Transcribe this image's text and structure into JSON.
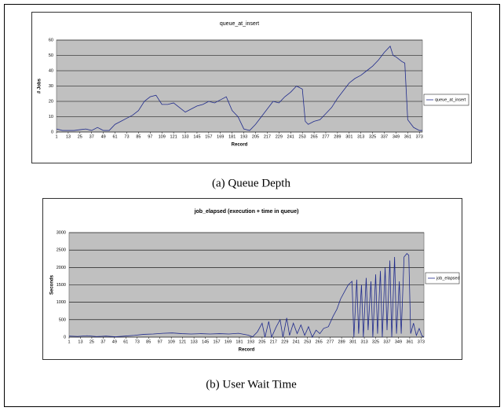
{
  "chart_data": [
    {
      "type": "line",
      "title": "queue_at_insert",
      "x_label": "Record",
      "y_label": "# Jobs",
      "caption": "(a) Queue Depth",
      "xlim": [
        1,
        376
      ],
      "xticks": [
        1,
        13,
        25,
        37,
        49,
        61,
        73,
        85,
        97,
        109,
        121,
        133,
        145,
        157,
        169,
        181,
        193,
        205,
        217,
        229,
        241,
        253,
        265,
        277,
        289,
        301,
        313,
        325,
        337,
        349,
        361,
        373
      ],
      "ylim": [
        0,
        60
      ],
      "yticks": [
        0,
        10,
        20,
        30,
        40,
        50,
        60
      ],
      "grid": true,
      "legend": "right",
      "x": [
        1,
        7,
        13,
        19,
        25,
        31,
        37,
        43,
        49,
        55,
        61,
        67,
        73,
        79,
        85,
        91,
        97,
        103,
        109,
        115,
        121,
        127,
        133,
        139,
        145,
        151,
        157,
        163,
        169,
        175,
        181,
        187,
        193,
        199,
        205,
        211,
        217,
        223,
        229,
        235,
        241,
        247,
        253,
        256,
        259,
        265,
        271,
        277,
        283,
        289,
        295,
        301,
        307,
        313,
        319,
        325,
        331,
        337,
        343,
        346,
        349,
        355,
        358,
        361,
        367,
        373,
        376
      ],
      "series": [
        {
          "name": "queue_at_insert",
          "color": "#1f2a8c",
          "values": [
            2,
            1,
            1,
            1,
            1.5,
            2,
            1,
            3,
            1,
            1,
            5,
            7,
            9,
            11,
            14,
            20,
            23,
            24,
            18,
            18,
            19,
            16,
            13,
            15,
            17,
            18,
            20,
            19,
            21,
            23,
            14,
            10,
            2,
            1,
            5,
            10,
            15,
            20,
            19,
            23,
            26,
            30,
            28,
            7,
            5,
            7,
            8,
            12,
            16,
            22,
            27,
            32,
            35,
            37,
            40,
            43,
            47,
            52,
            56,
            50,
            49,
            46,
            45,
            8,
            3,
            1,
            1
          ]
        }
      ]
    },
    {
      "type": "line",
      "title": "job_elapsed (execution + time in queue)",
      "x_label": "Record",
      "y_label": "Seconds",
      "caption": "(b) User Wait Time",
      "xlim": [
        1,
        376
      ],
      "xticks": [
        1,
        13,
        25,
        37,
        49,
        61,
        73,
        85,
        97,
        109,
        121,
        133,
        145,
        157,
        169,
        181,
        193,
        205,
        217,
        229,
        241,
        253,
        265,
        277,
        289,
        301,
        313,
        325,
        337,
        349,
        361,
        373
      ],
      "ylim": [
        0,
        3000
      ],
      "yticks": [
        0,
        500,
        1000,
        1500,
        2000,
        2500,
        3000
      ],
      "grid": true,
      "legend": "right",
      "x": [
        1,
        10,
        20,
        30,
        40,
        50,
        60,
        70,
        80,
        90,
        100,
        110,
        120,
        130,
        140,
        150,
        160,
        170,
        180,
        190,
        195,
        200,
        205,
        208,
        212,
        215,
        220,
        224,
        227,
        231,
        234,
        238,
        242,
        246,
        250,
        254,
        258,
        262,
        266,
        270,
        275,
        280,
        284,
        288,
        292,
        296,
        300,
        302,
        305,
        307,
        310,
        312,
        315,
        317,
        320,
        322,
        325,
        327,
        330,
        332,
        335,
        337,
        340,
        342,
        345,
        347,
        350,
        352,
        355,
        358,
        360,
        362,
        365,
        368,
        371,
        374,
        376
      ],
      "series": [
        {
          "name": "job_elapsed",
          "color": "#1f2a8c",
          "values": [
            30,
            20,
            40,
            15,
            30,
            10,
            30,
            50,
            80,
            90,
            110,
            120,
            100,
            90,
            100,
            90,
            100,
            90,
            110,
            60,
            10,
            150,
            400,
            0,
            450,
            0,
            300,
            500,
            0,
            550,
            50,
            400,
            100,
            350,
            50,
            300,
            0,
            200,
            100,
            250,
            300,
            600,
            800,
            1100,
            1300,
            1500,
            1600,
            0,
            1650,
            100,
            1500,
            0,
            1700,
            200,
            1600,
            0,
            1800,
            100,
            1900,
            0,
            2000,
            200,
            2200,
            0,
            2300,
            100,
            1600,
            100,
            2300,
            2400,
            2350,
            100,
            400,
            50,
            250,
            30,
            10
          ]
        }
      ]
    }
  ]
}
